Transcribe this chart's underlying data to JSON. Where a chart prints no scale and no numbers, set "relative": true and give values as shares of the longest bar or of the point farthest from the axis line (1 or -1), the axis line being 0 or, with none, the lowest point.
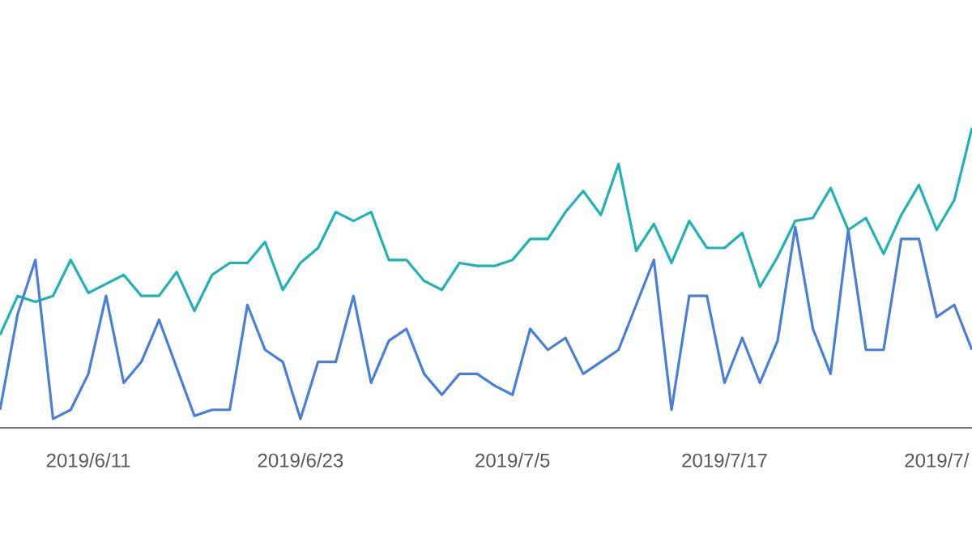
{
  "chart_data": {
    "type": "line",
    "relative": true,
    "marker": "none",
    "line_style": "solid",
    "x": [
      "2019-06-06",
      "2019-06-07",
      "2019-06-08",
      "2019-06-09",
      "2019-06-10",
      "2019-06-11",
      "2019-06-12",
      "2019-06-13",
      "2019-06-14",
      "2019-06-15",
      "2019-06-16",
      "2019-06-17",
      "2019-06-18",
      "2019-06-19",
      "2019-06-20",
      "2019-06-21",
      "2019-06-22",
      "2019-06-23",
      "2019-06-24",
      "2019-06-25",
      "2019-06-26",
      "2019-06-27",
      "2019-06-28",
      "2019-06-29",
      "2019-06-30",
      "2019-07-01",
      "2019-07-02",
      "2019-07-03",
      "2019-07-04",
      "2019-07-05",
      "2019-07-06",
      "2019-07-07",
      "2019-07-08",
      "2019-07-09",
      "2019-07-10",
      "2019-07-11",
      "2019-07-12",
      "2019-07-13",
      "2019-07-14",
      "2019-07-15",
      "2019-07-16",
      "2019-07-17",
      "2019-07-18",
      "2019-07-19",
      "2019-07-20",
      "2019-07-21",
      "2019-07-22",
      "2019-07-23",
      "2019-07-24",
      "2019-07-25",
      "2019-07-26",
      "2019-07-27",
      "2019-07-28",
      "2019-07-29",
      "2019-07-30",
      "2019-07-31"
    ],
    "xlim": [
      "2019-06-06",
      "2019-07-31"
    ],
    "xticks": [
      {
        "value": "2019-06-11",
        "label": "2019/6/11"
      },
      {
        "value": "2019-06-23",
        "label": "2019/6/23"
      },
      {
        "value": "2019-07-05",
        "label": "2019/7/5"
      },
      {
        "value": "2019-07-17",
        "label": "2019/7/17"
      },
      {
        "value": "2019-07-29",
        "label": "2019/7/"
      }
    ],
    "series": [
      {
        "color": "#1fb3b5",
        "values": [
          0.31,
          0.44,
          0.42,
          0.44,
          0.56,
          0.45,
          0.48,
          0.51,
          0.44,
          0.44,
          0.52,
          0.39,
          0.51,
          0.55,
          0.55,
          0.62,
          0.46,
          0.55,
          0.6,
          0.72,
          0.69,
          0.72,
          0.56,
          0.56,
          0.49,
          0.46,
          0.55,
          0.54,
          0.54,
          0.56,
          0.63,
          0.63,
          0.72,
          0.79,
          0.71,
          0.88,
          0.59,
          0.68,
          0.55,
          0.69,
          0.6,
          0.6,
          0.65,
          0.47,
          0.57,
          0.69,
          0.7,
          0.8,
          0.66,
          0.7,
          0.58,
          0.71,
          0.81,
          0.66,
          0.76,
          1.0
        ]
      },
      {
        "color": "#4a7fd8",
        "values": [
          0.06,
          0.38,
          0.56,
          0.03,
          0.06,
          0.18,
          0.44,
          0.15,
          0.22,
          0.36,
          0.2,
          0.04,
          0.06,
          0.06,
          0.41,
          0.26,
          0.22,
          0.03,
          0.22,
          0.22,
          0.44,
          0.15,
          0.29,
          0.33,
          0.18,
          0.11,
          0.18,
          0.18,
          0.14,
          0.11,
          0.33,
          0.26,
          0.3,
          0.18,
          0.22,
          0.26,
          0.41,
          0.56,
          0.06,
          0.44,
          0.44,
          0.15,
          0.3,
          0.15,
          0.29,
          0.67,
          0.33,
          0.18,
          0.66,
          0.26,
          0.26,
          0.63,
          0.63,
          0.37,
          0.41,
          0.26
        ]
      }
    ]
  }
}
